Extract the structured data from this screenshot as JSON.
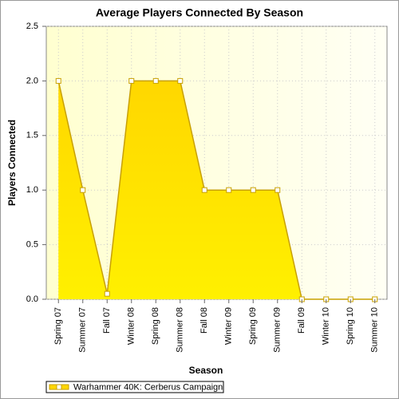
{
  "chart_data": {
    "type": "area",
    "title": "Average Players Connected By Season",
    "x_label": "Season",
    "y_label": "Players Connected",
    "categories": [
      "Spring 07",
      "Summer 07",
      "Fall 07",
      "Winter 08",
      "Spring 08",
      "Summer 08",
      "Fall 08",
      "Winter 09",
      "Spring 09",
      "Summer 09",
      "Fall 09",
      "Winter 10",
      "Spring 10",
      "Summer 10"
    ],
    "series": [
      {
        "name": "Warhammer 40K: Cerberus Campaign",
        "color": "#ffd700",
        "line_color": "#c8a000",
        "values": [
          2,
          1,
          0.05,
          2,
          2,
          2,
          1,
          1,
          1,
          1,
          0,
          0,
          0,
          0
        ]
      }
    ],
    "ylim": [
      0,
      2.5
    ],
    "yticks": [
      {
        "value": 0,
        "label": "0.0"
      },
      0.5,
      {
        "value": 1,
        "label": "1.0"
      },
      1.5,
      {
        "value": 2,
        "label": "2.0"
      },
      2.5
    ],
    "grid": true,
    "legend": "bottom-left"
  }
}
